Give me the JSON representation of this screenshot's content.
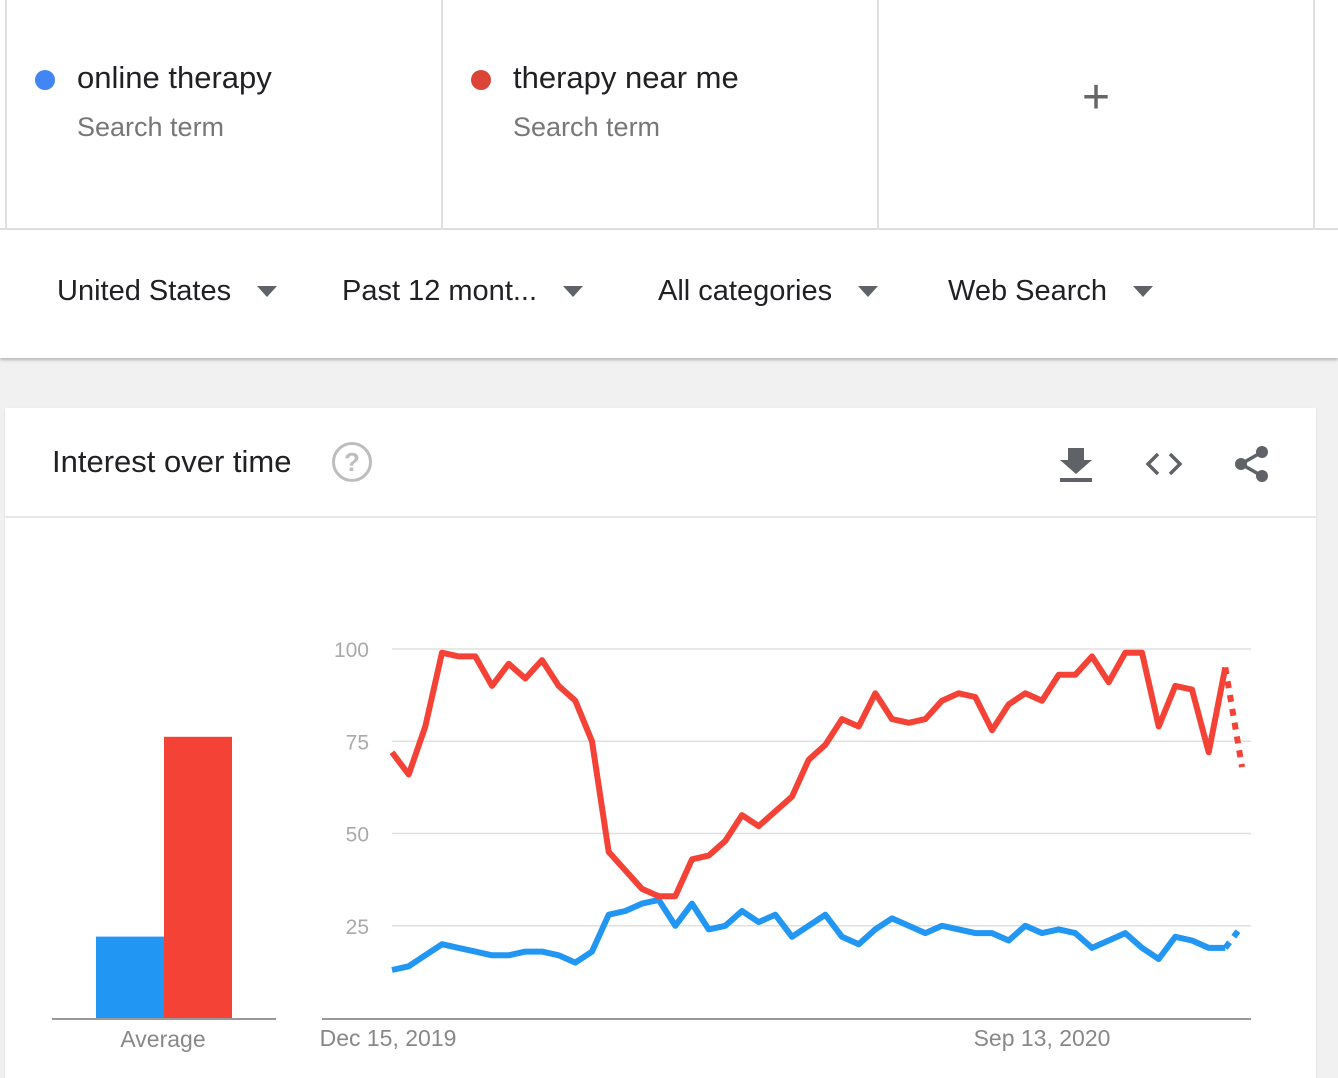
{
  "terms": [
    {
      "name": "online therapy",
      "sub": "Search term",
      "color": "#4285f4"
    },
    {
      "name": "therapy near me",
      "sub": "Search term",
      "color": "#db4437"
    }
  ],
  "add_term": {
    "label": "+"
  },
  "filters": [
    {
      "label": "United States"
    },
    {
      "label": "Past 12 mont..."
    },
    {
      "label": "All categories"
    },
    {
      "label": "Web Search"
    }
  ],
  "card": {
    "title": "Interest over time",
    "help_glyph": "?",
    "icons": [
      "download-icon",
      "embed-icon",
      "share-icon"
    ]
  },
  "chart_data": [
    {
      "type": "bar",
      "categories": [
        "Average"
      ],
      "series": [
        {
          "name": "online therapy",
          "values": [
            22
          ],
          "color": "#2196f3"
        },
        {
          "name": "therapy near me",
          "values": [
            76
          ],
          "color": "#f44336"
        }
      ],
      "ylim": [
        0,
        100
      ]
    },
    {
      "type": "line",
      "x_tick_labels": [
        {
          "label": "Dec 15, 2019",
          "index": 0
        },
        {
          "label": "Sep 13, 2020",
          "index": 39
        }
      ],
      "y_ticks": [
        100,
        75,
        50,
        25
      ],
      "ylim": [
        0,
        100
      ],
      "grid": true,
      "series": [
        {
          "name": "online therapy",
          "color": "#2196f3",
          "values": [
            13,
            14,
            17,
            20,
            19,
            18,
            17,
            17,
            18,
            18,
            17,
            15,
            18,
            28,
            29,
            31,
            32,
            25,
            31,
            24,
            25,
            29,
            26,
            28,
            22,
            25,
            28,
            22,
            20,
            24,
            27,
            25,
            23,
            25,
            24,
            23,
            23,
            21,
            25,
            23,
            24,
            23,
            19,
            21,
            23,
            19,
            16,
            22,
            21,
            19,
            19,
            25
          ],
          "partial_from_index": 50
        },
        {
          "name": "therapy near me",
          "color": "#f44336",
          "values": [
            72,
            66,
            79,
            99,
            98,
            98,
            90,
            96,
            92,
            97,
            90,
            86,
            75,
            45,
            40,
            35,
            33,
            33,
            43,
            44,
            48,
            55,
            52,
            56,
            60,
            70,
            74,
            81,
            79,
            88,
            81,
            80,
            81,
            86,
            88,
            87,
            78,
            85,
            88,
            86,
            93,
            93,
            98,
            91,
            99,
            99,
            79,
            90,
            89,
            72,
            95,
            68
          ],
          "partial_from_index": 50
        }
      ]
    }
  ]
}
